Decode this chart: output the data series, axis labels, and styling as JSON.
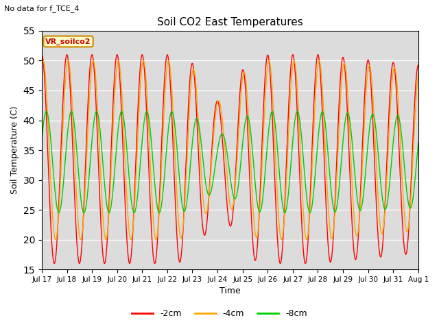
{
  "title": "Soil CO2 East Temperatures",
  "subtitle": "No data for f_TCE_4",
  "xlabel": "Time",
  "ylabel": "Soil Temperature (C)",
  "ylim": [
    15,
    55
  ],
  "legend_label": "VR_soilco2",
  "series_labels": [
    "-2cm",
    "-4cm",
    "-8cm"
  ],
  "series_colors": [
    "#ff0000",
    "#ffa500",
    "#00cc00"
  ],
  "background_color": "#dcdcdc",
  "xtick_labels": [
    "Jul 17",
    "Jul 18",
    "Jul 19",
    "Jul 20",
    "Jul 21",
    "Jul 22",
    "Jul 23",
    "Jul 24",
    "Jul 25",
    "Jul 26",
    "Jul 27",
    "Jul 28",
    "Jul 29",
    "Jul 30",
    "Jul 31",
    "Aug 1"
  ],
  "num_points": 1500
}
